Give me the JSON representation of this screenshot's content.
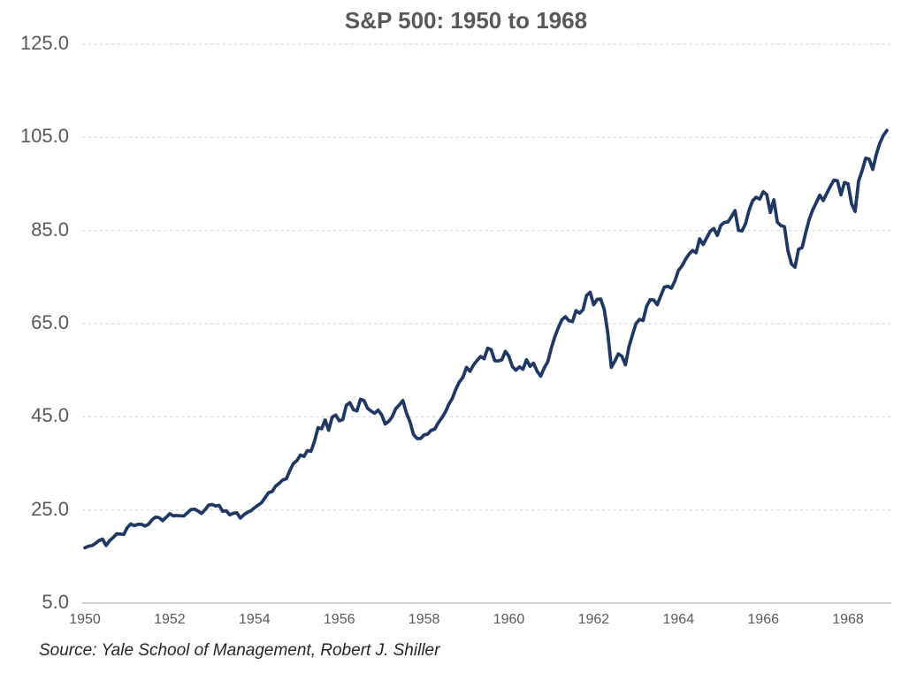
{
  "chart_data": {
    "type": "line",
    "title": "S&P 500: 1950 to 1968",
    "source": "Source:  Yale School of Management, Robert J. Shiller",
    "xlabel": "",
    "ylabel": "",
    "x_start_year": 1950,
    "x_end_year": 1968,
    "frequency": "monthly",
    "ylim": [
      5.0,
      125.0
    ],
    "y_ticks": [
      125.0,
      105.0,
      85.0,
      65.0,
      45.0,
      25.0,
      5.0
    ],
    "y_tick_labels": [
      "125.0",
      "105.0",
      "85.0",
      "65.0",
      "45.0",
      "25.0",
      "5.0"
    ],
    "x_tick_years": [
      1950,
      1952,
      1954,
      1956,
      1958,
      1960,
      1962,
      1964,
      1966,
      1968
    ],
    "grid": "horizontal-dashed",
    "legend": "none",
    "colors": {
      "line": "#1f3864",
      "gridline": "#d9d9d9",
      "axis_line": "#bfbfbf",
      "tick_label": "#595959",
      "title": "#595959",
      "source_text": "#262626"
    },
    "series": [
      {
        "name": "S&P 500",
        "values": [
          16.88,
          17.21,
          17.35,
          17.84,
          18.44,
          18.74,
          17.38,
          18.43,
          19.08,
          19.87,
          19.83,
          19.75,
          21.21,
          22.0,
          21.63,
          21.92,
          21.93,
          21.55,
          21.93,
          22.89,
          23.48,
          23.36,
          22.71,
          23.41,
          24.19,
          23.75,
          23.81,
          23.74,
          23.73,
          24.38,
          25.08,
          25.18,
          24.78,
          24.26,
          25.03,
          26.04,
          26.18,
          25.86,
          25.99,
          24.71,
          24.84,
          23.95,
          24.29,
          24.39,
          23.27,
          23.97,
          24.5,
          24.83,
          25.46,
          26.02,
          26.57,
          27.63,
          28.73,
          28.96,
          30.13,
          30.73,
          31.45,
          31.68,
          33.44,
          34.97,
          35.6,
          36.79,
          36.5,
          37.76,
          37.6,
          39.78,
          42.69,
          42.43,
          44.34,
          42.11,
          44.95,
          45.37,
          44.15,
          44.43,
          47.49,
          48.05,
          46.54,
          46.27,
          48.78,
          48.49,
          46.84,
          46.24,
          45.76,
          46.44,
          45.43,
          43.47,
          44.03,
          45.05,
          46.78,
          47.55,
          48.51,
          45.84,
          43.98,
          41.24,
          40.35,
          40.33,
          41.12,
          41.26,
          42.11,
          42.34,
          43.7,
          44.75,
          45.98,
          47.7,
          48.96,
          50.95,
          52.5,
          53.49,
          55.62,
          54.77,
          56.15,
          57.1,
          57.96,
          57.46,
          59.74,
          59.4,
          57.05,
          57.0,
          57.23,
          59.06,
          58.03,
          55.78,
          55.02,
          55.73,
          55.22,
          57.26,
          55.84,
          56.51,
          54.81,
          53.73,
          55.47,
          56.8,
          59.72,
          62.17,
          64.12,
          65.83,
          66.5,
          65.62,
          65.44,
          67.79,
          67.26,
          68.0,
          71.08,
          71.74,
          69.07,
          70.22,
          70.29,
          68.05,
          62.99,
          55.63,
          56.97,
          58.52,
          58.0,
          56.17,
          60.04,
          62.64,
          65.06,
          65.92,
          65.67,
          68.76,
          70.14,
          70.11,
          69.07,
          70.98,
          72.85,
          73.03,
          72.62,
          74.17,
          76.45,
          77.39,
          78.8,
          79.94,
          80.72,
          80.24,
          83.22,
          82.0,
          83.41,
          84.85,
          85.44,
          83.96,
          86.12,
          86.75,
          86.83,
          87.97,
          89.28,
          85.04,
          84.91,
          86.49,
          89.38,
          91.39,
          92.15,
          91.73,
          93.32,
          92.69,
          88.88,
          91.6,
          86.78,
          86.06,
          85.84,
          80.65,
          77.81,
          77.13,
          80.99,
          81.33,
          84.45,
          87.36,
          89.42,
          90.96,
          92.59,
          91.43,
          93.01,
          94.49,
          95.81,
          95.66,
          92.66,
          95.3,
          95.04,
          90.75,
          89.09,
          95.67,
          97.87,
          100.53,
          100.3,
          98.11,
          101.34,
          103.76,
          105.4,
          106.48
        ]
      }
    ]
  }
}
